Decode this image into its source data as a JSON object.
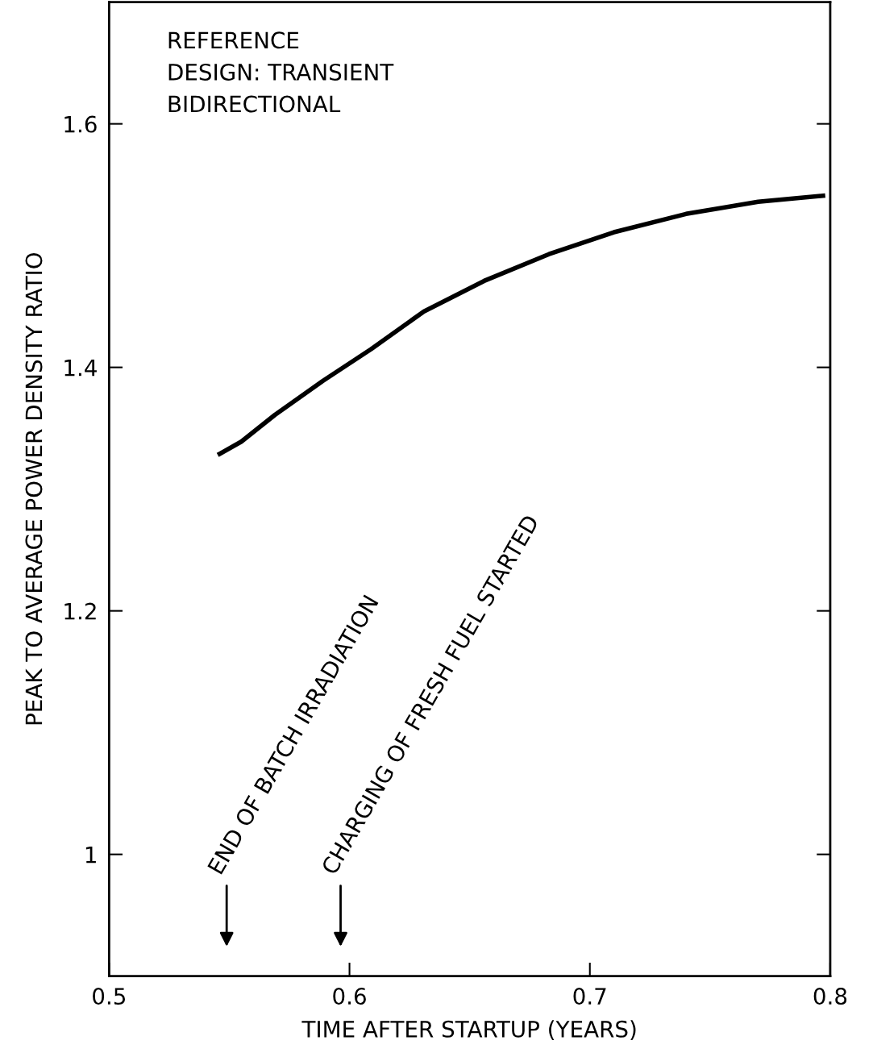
{
  "chart_data": {
    "type": "line",
    "xlabel": "TIME AFTER STARTUP (YEARS)",
    "ylabel": "PEAK TO AVERAGE POWER DENSITY RATIO",
    "x": [
      0.546,
      0.555,
      0.569,
      0.589,
      0.609,
      0.631,
      0.656,
      0.683,
      0.71,
      0.74,
      0.77,
      0.797
    ],
    "series": [
      {
        "color": "#000000",
        "values": [
          1.329,
          1.339,
          1.361,
          1.389,
          1.415,
          1.446,
          1.471,
          1.493,
          1.511,
          1.526,
          1.536,
          1.541
        ]
      }
    ],
    "xlim": [
      0.5,
      0.8
    ],
    "ylim": [
      0.9,
      1.7
    ],
    "xticks": [
      0.5,
      0.6,
      0.7,
      0.8
    ],
    "yticks": [
      1,
      1.2,
      1.4,
      1.6
    ],
    "grid": false,
    "legend": false,
    "marker": "none",
    "line_style": "solid",
    "annotations": [
      "REFERENCE\nDESIGN: TRANSIENT\nBIDIRECTIONAL",
      "END OF BATCH IRRADIATION",
      "CHARGING OF FRESH FUEL STARTED"
    ]
  }
}
